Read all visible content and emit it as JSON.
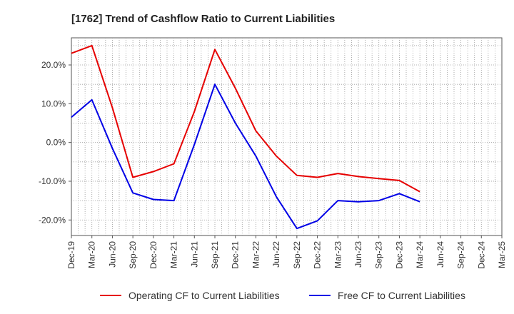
{
  "chart_data": {
    "type": "line",
    "title": "[1762]  Trend of Cashflow Ratio to Current Liabilities",
    "xlabel": "",
    "ylabel": "",
    "x": [
      "Dec-19",
      "Mar-20",
      "Jun-20",
      "Sep-20",
      "Dec-20",
      "Mar-21",
      "Jun-21",
      "Sep-21",
      "Dec-21",
      "Mar-22",
      "Jun-22",
      "Sep-22",
      "Dec-22",
      "Mar-23",
      "Jun-23",
      "Sep-23",
      "Dec-23",
      "Mar-24",
      "Jun-24",
      "Sep-24",
      "Dec-24",
      "Mar-25"
    ],
    "x_numeric": [
      0,
      3,
      6,
      9,
      12,
      15,
      18,
      21,
      24,
      27,
      30,
      33,
      36,
      39,
      42,
      45,
      48,
      51,
      54,
      57,
      60,
      63
    ],
    "ylim": [
      -24,
      27
    ],
    "yticks": [
      -20,
      -10,
      0,
      10,
      20
    ],
    "ytick_labels": [
      "-20.0%",
      "-10.0%",
      "0.0%",
      "10.0%",
      "20.0%"
    ],
    "grid": true,
    "legend_position": "bottom",
    "series": [
      {
        "name": "Operating CF to Current Liabilities",
        "color": "#e60000",
        "points": [
          [
            0,
            23.0
          ],
          [
            3,
            25.0
          ],
          [
            6,
            9.0
          ],
          [
            9,
            -9.0
          ],
          [
            12,
            -7.5
          ],
          [
            15,
            -5.5
          ],
          [
            18,
            8.0
          ],
          [
            21,
            24.0
          ],
          [
            24,
            14.0
          ],
          [
            27,
            3.0
          ],
          [
            30,
            -3.5
          ],
          [
            33,
            -8.5
          ],
          [
            36,
            -9.0
          ],
          [
            39,
            -8.0
          ],
          [
            42,
            -8.8
          ],
          [
            45,
            -9.3
          ],
          [
            48,
            -9.8
          ],
          [
            51,
            -12.7
          ]
        ]
      },
      {
        "name": "Free CF to Current Liabilities",
        "color": "#0000e6",
        "points": [
          [
            0,
            6.5
          ],
          [
            3,
            11.0
          ],
          [
            6,
            -1.5
          ],
          [
            9,
            -13.0
          ],
          [
            12,
            -14.7
          ],
          [
            15,
            -15.0
          ],
          [
            18,
            -0.5
          ],
          [
            21,
            15.0
          ],
          [
            24,
            5.0
          ],
          [
            27,
            -3.5
          ],
          [
            30,
            -14.0
          ],
          [
            33,
            -22.2
          ],
          [
            36,
            -20.2
          ],
          [
            39,
            -15.0
          ],
          [
            42,
            -15.3
          ],
          [
            45,
            -15.0
          ],
          [
            48,
            -13.2
          ],
          [
            51,
            -15.3
          ]
        ]
      }
    ]
  }
}
